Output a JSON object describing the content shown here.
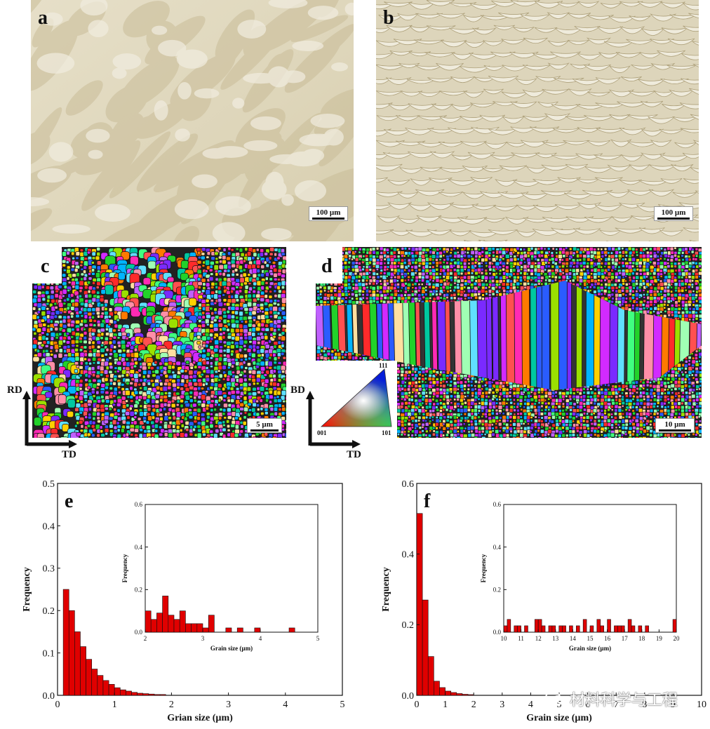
{
  "panels": {
    "a": {
      "letter": "a",
      "scale_label": "100 µm"
    },
    "b": {
      "letter": "b",
      "scale_label": "100 µm"
    },
    "c": {
      "letter": "c",
      "scale_label": "5 µm",
      "axis_v": "RD",
      "axis_h": "TD"
    },
    "d": {
      "letter": "d",
      "scale_label": "10 µm",
      "axis_v": "BD",
      "axis_h": "TD",
      "ipf_labels": {
        "top": "111",
        "left": "001",
        "right": "101"
      }
    }
  },
  "chart_data": [
    {
      "panel": "e",
      "type": "bar",
      "xlabel": "Grian size (µm)",
      "ylabel": "Frequency",
      "xlim": [
        0,
        5
      ],
      "ylim": [
        0,
        0.5
      ],
      "xticks": [
        "0",
        "1",
        "2",
        "3",
        "4",
        "5"
      ],
      "yticks": [
        "0.0",
        "0.1",
        "0.2",
        "0.3",
        "0.4",
        "0.5"
      ],
      "bin_width": 0.1,
      "x": [
        0.15,
        0.25,
        0.35,
        0.45,
        0.55,
        0.65,
        0.75,
        0.85,
        0.95,
        1.05,
        1.15,
        1.25,
        1.35,
        1.45,
        1.55,
        1.65,
        1.75,
        1.85
      ],
      "values": [
        0.25,
        0.2,
        0.15,
        0.115,
        0.085,
        0.062,
        0.047,
        0.035,
        0.026,
        0.018,
        0.013,
        0.01,
        0.007,
        0.005,
        0.004,
        0.003,
        0.002,
        0.002
      ],
      "color": "#e00000",
      "inset": {
        "xlabel": "Grain size (µm)",
        "ylabel": "Frequency",
        "xlim": [
          2,
          5
        ],
        "ylim": [
          0,
          0.6
        ],
        "xticks": [
          "2",
          "3",
          "4",
          "5"
        ],
        "yticks": [
          "0.0",
          "0.2",
          "0.4",
          "0.6"
        ],
        "bin_width": 0.1,
        "x": [
          2.05,
          2.15,
          2.25,
          2.35,
          2.45,
          2.55,
          2.65,
          2.75,
          2.85,
          2.95,
          3.05,
          3.15,
          3.25,
          3.35,
          3.45,
          3.55,
          3.65,
          3.75,
          3.85,
          3.95,
          4.05,
          4.55
        ],
        "values": [
          0.1,
          0.06,
          0.09,
          0.17,
          0.08,
          0.06,
          0.1,
          0.04,
          0.04,
          0.04,
          0.02,
          0.08,
          0.0,
          0.0,
          0.02,
          0.0,
          0.02,
          0.0,
          0.0,
          0.02,
          0.0,
          0.02
        ]
      }
    },
    {
      "panel": "f",
      "type": "bar",
      "xlabel": "Grain size (µm)",
      "ylabel": "Frequency",
      "xlim": [
        0,
        10
      ],
      "ylim": [
        0,
        0.6
      ],
      "xticks": [
        "0",
        "1",
        "2",
        "3",
        "4",
        "5",
        "6",
        "7",
        "8",
        "9",
        "10"
      ],
      "yticks": [
        "0.0",
        "0.2",
        "0.4",
        "0.6"
      ],
      "bin_width": 0.2,
      "x": [
        0.1,
        0.3,
        0.5,
        0.7,
        0.9,
        1.1,
        1.3,
        1.5,
        1.7,
        1.9
      ],
      "values": [
        0.515,
        0.27,
        0.11,
        0.04,
        0.022,
        0.012,
        0.008,
        0.005,
        0.003,
        0.002
      ],
      "color": "#e00000",
      "inset": {
        "xlabel": "Grain size (µm)",
        "ylabel": "Frequency",
        "xlim": [
          10,
          20
        ],
        "ylim": [
          0,
          0.6
        ],
        "xticks": [
          "10",
          "11",
          "12",
          "13",
          "14",
          "15",
          "16",
          "17",
          "18",
          "19",
          "20"
        ],
        "yticks": [
          "0.0",
          "0.2",
          "0.4",
          "0.6"
        ],
        "bin_width": 0.2,
        "x": [
          10.1,
          10.3,
          10.7,
          10.9,
          11.3,
          11.9,
          12.1,
          12.3,
          12.7,
          12.9,
          13.3,
          13.5,
          13.9,
          14.3,
          14.7,
          15.1,
          15.5,
          15.7,
          16.1,
          16.5,
          16.7,
          16.9,
          17.3,
          17.5,
          17.9,
          18.3,
          19.9
        ],
        "values": [
          0.03,
          0.06,
          0.03,
          0.03,
          0.03,
          0.06,
          0.06,
          0.03,
          0.03,
          0.03,
          0.03,
          0.03,
          0.03,
          0.03,
          0.06,
          0.03,
          0.06,
          0.03,
          0.06,
          0.03,
          0.03,
          0.03,
          0.06,
          0.03,
          0.03,
          0.03,
          0.06
        ]
      }
    }
  ],
  "watermark": {
    "text": "材料科学与工程"
  },
  "colors": {
    "bar": "#e00000",
    "micrograph_light": "#e9e2cd",
    "micrograph_dark": "#c9bd9a"
  }
}
